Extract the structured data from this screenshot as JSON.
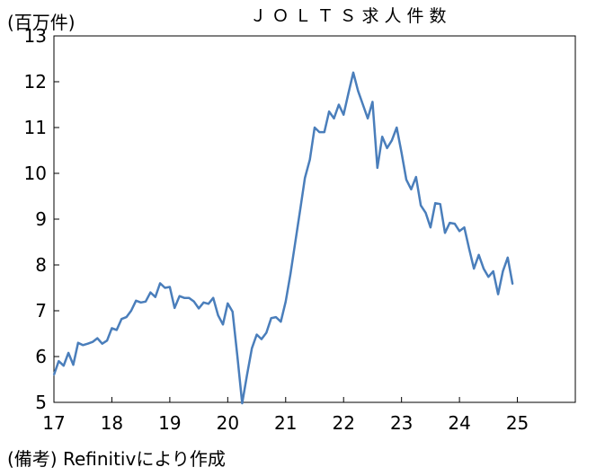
{
  "chart_data": {
    "type": "line",
    "title": "ＪＯＬＴＳ求人件数",
    "ylabel": "(百万件)",
    "xlabel": "",
    "note": "(備考) Refinitivにより作成",
    "xlim": [
      17,
      26
    ],
    "ylim": [
      5,
      13
    ],
    "y_ticks": [
      5,
      6,
      7,
      8,
      9,
      10,
      11,
      12,
      13
    ],
    "x_ticks": [
      17,
      18,
      19,
      20,
      21,
      22,
      23,
      24,
      25
    ],
    "x_tick_labels": [
      "17",
      "18",
      "19",
      "20",
      "21",
      "22",
      "23",
      "24",
      "25"
    ],
    "grid": false,
    "series": [
      {
        "color": "#4a7ebb",
        "x": [
          17.0,
          17.083,
          17.167,
          17.25,
          17.333,
          17.417,
          17.5,
          17.583,
          17.667,
          17.75,
          17.833,
          17.917,
          18.0,
          18.083,
          18.167,
          18.25,
          18.333,
          18.417,
          18.5,
          18.583,
          18.667,
          18.75,
          18.833,
          18.917,
          19.0,
          19.083,
          19.167,
          19.25,
          19.333,
          19.417,
          19.5,
          19.583,
          19.667,
          19.75,
          19.833,
          19.917,
          20.0,
          20.083,
          20.167,
          20.25,
          20.333,
          20.417,
          20.5,
          20.583,
          20.667,
          20.75,
          20.833,
          20.917,
          21.0,
          21.083,
          21.167,
          21.25,
          21.333,
          21.417,
          21.5,
          21.583,
          21.667,
          21.75,
          21.833,
          21.917,
          22.0,
          22.083,
          22.167,
          22.25,
          22.333,
          22.417,
          22.5,
          22.583,
          22.667,
          22.75,
          22.833,
          22.917,
          23.0,
          23.083,
          23.167,
          23.25,
          23.333,
          23.417,
          23.5,
          23.583,
          23.667,
          23.75,
          23.833,
          23.917,
          24.0,
          24.083,
          24.167,
          24.25,
          24.333,
          24.417,
          24.5,
          24.583,
          24.667,
          24.75,
          24.833,
          24.917
        ],
        "y": [
          5.6,
          5.9,
          5.8,
          6.08,
          5.82,
          6.3,
          6.25,
          6.28,
          6.32,
          6.4,
          6.28,
          6.35,
          6.62,
          6.58,
          6.82,
          6.86,
          7.0,
          7.22,
          7.18,
          7.2,
          7.4,
          7.3,
          7.6,
          7.5,
          7.52,
          7.06,
          7.32,
          7.28,
          7.28,
          7.2,
          7.05,
          7.18,
          7.15,
          7.28,
          6.9,
          6.7,
          7.16,
          6.98,
          6.0,
          4.98,
          5.6,
          6.18,
          6.48,
          6.38,
          6.52,
          6.84,
          6.86,
          6.76,
          7.2,
          7.8,
          8.5,
          9.2,
          9.9,
          10.3,
          11.0,
          10.9,
          10.9,
          11.35,
          11.2,
          11.5,
          11.28,
          11.75,
          12.2,
          11.8,
          11.5,
          11.2,
          11.56,
          10.12,
          10.8,
          10.55,
          10.72,
          11.0,
          10.45,
          9.86,
          9.65,
          9.92,
          9.3,
          9.14,
          8.82,
          9.35,
          9.33,
          8.7,
          8.92,
          8.9,
          8.74,
          8.82,
          8.35,
          7.92,
          8.22,
          7.92,
          7.74,
          7.86,
          7.36,
          7.86,
          8.16,
          7.58
        ]
      }
    ]
  }
}
